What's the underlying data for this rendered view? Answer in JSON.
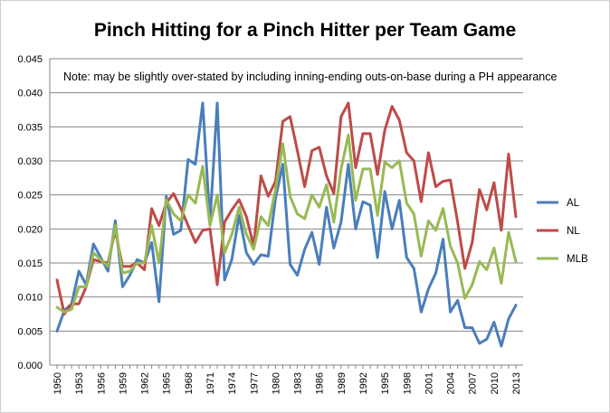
{
  "chart_data": {
    "type": "line",
    "title": "Pinch Hitting for a Pinch Hitter per Team Game",
    "annotation": "Note: may be slightly over-stated by including inning-ending outs-on-base during a PH appearance",
    "xlabel": "",
    "ylabel": "",
    "ylim": [
      0,
      0.045
    ],
    "yticks": [
      "0.000",
      "0.005",
      "0.010",
      "0.015",
      "0.020",
      "0.025",
      "0.030",
      "0.035",
      "0.040",
      "0.045"
    ],
    "x": [
      1950,
      1951,
      1952,
      1953,
      1954,
      1955,
      1956,
      1957,
      1958,
      1959,
      1960,
      1961,
      1962,
      1963,
      1964,
      1965,
      1966,
      1967,
      1968,
      1969,
      1970,
      1971,
      1972,
      1973,
      1974,
      1975,
      1976,
      1977,
      1978,
      1979,
      1980,
      1981,
      1982,
      1983,
      1984,
      1985,
      1986,
      1987,
      1988,
      1989,
      1990,
      1991,
      1992,
      1993,
      1994,
      1995,
      1996,
      1997,
      1998,
      1999,
      2000,
      2001,
      2002,
      2003,
      2004,
      2005,
      2006,
      2007,
      2008,
      2009,
      2010,
      2011,
      2012,
      2013
    ],
    "xtick_labels": [
      "1950",
      "1953",
      "1956",
      "1959",
      "1962",
      "1965",
      "1968",
      "1971",
      "1974",
      "1977",
      "1980",
      "1983",
      "1986",
      "1989",
      "1992",
      "1995",
      "1998",
      "2001",
      "2004",
      "2007",
      "2010",
      "2013"
    ],
    "grid": "horizontal",
    "legend_position": "right",
    "series": [
      {
        "name": "AL",
        "color": "#4a7ebb",
        "values": [
          0.005,
          0.008,
          0.009,
          0.0138,
          0.0118,
          0.0178,
          0.0158,
          0.0138,
          0.0212,
          0.0115,
          0.0132,
          0.0155,
          0.015,
          0.018,
          0.0093,
          0.0248,
          0.0192,
          0.0198,
          0.0302,
          0.0295,
          0.0385,
          0.021,
          0.0385,
          0.0125,
          0.0155,
          0.022,
          0.0165,
          0.0148,
          0.0162,
          0.016,
          0.0245,
          0.0295,
          0.0148,
          0.0132,
          0.017,
          0.0195,
          0.0148,
          0.0232,
          0.0172,
          0.021,
          0.0295,
          0.02,
          0.024,
          0.0235,
          0.0158,
          0.0255,
          0.02,
          0.0242,
          0.0158,
          0.0142,
          0.0078,
          0.0112,
          0.0135,
          0.0185,
          0.0078,
          0.0095,
          0.0055,
          0.0055,
          0.0032,
          0.0038,
          0.0063,
          0.0028,
          0.0068,
          0.0088
        ]
      },
      {
        "name": "NL",
        "color": "#be4b48",
        "values": [
          0.0125,
          0.0075,
          0.009,
          0.009,
          0.0115,
          0.0155,
          0.0152,
          0.015,
          0.0198,
          0.0145,
          0.0145,
          0.015,
          0.014,
          0.023,
          0.0205,
          0.0238,
          0.0252,
          0.023,
          0.0205,
          0.018,
          0.0198,
          0.02,
          0.0118,
          0.021,
          0.0228,
          0.0243,
          0.0218,
          0.0175,
          0.0278,
          0.0248,
          0.027,
          0.0358,
          0.0365,
          0.0315,
          0.0262,
          0.0315,
          0.032,
          0.0278,
          0.0252,
          0.0365,
          0.0385,
          0.029,
          0.034,
          0.034,
          0.028,
          0.0345,
          0.038,
          0.036,
          0.0312,
          0.03,
          0.024,
          0.0312,
          0.0262,
          0.027,
          0.0272,
          0.021,
          0.0142,
          0.018,
          0.0258,
          0.0228,
          0.0268,
          0.0198,
          0.031,
          0.0218
        ]
      },
      {
        "name": "MLB",
        "color": "#98b954",
        "values": [
          0.0085,
          0.0078,
          0.0082,
          0.0115,
          0.0115,
          0.0165,
          0.0155,
          0.0145,
          0.0205,
          0.0135,
          0.0138,
          0.015,
          0.015,
          0.0205,
          0.015,
          0.0243,
          0.0222,
          0.0212,
          0.025,
          0.0238,
          0.0292,
          0.0205,
          0.025,
          0.0165,
          0.0192,
          0.0232,
          0.0192,
          0.017,
          0.0218,
          0.0205,
          0.0258,
          0.0325,
          0.0248,
          0.0222,
          0.0215,
          0.025,
          0.0232,
          0.0265,
          0.021,
          0.0288,
          0.0338,
          0.0242,
          0.0288,
          0.0288,
          0.022,
          0.0298,
          0.029,
          0.03,
          0.0238,
          0.0222,
          0.016,
          0.0212,
          0.0198,
          0.023,
          0.0175,
          0.015,
          0.0098,
          0.0118,
          0.0152,
          0.014,
          0.0172,
          0.012,
          0.0195,
          0.0152
        ]
      }
    ]
  }
}
